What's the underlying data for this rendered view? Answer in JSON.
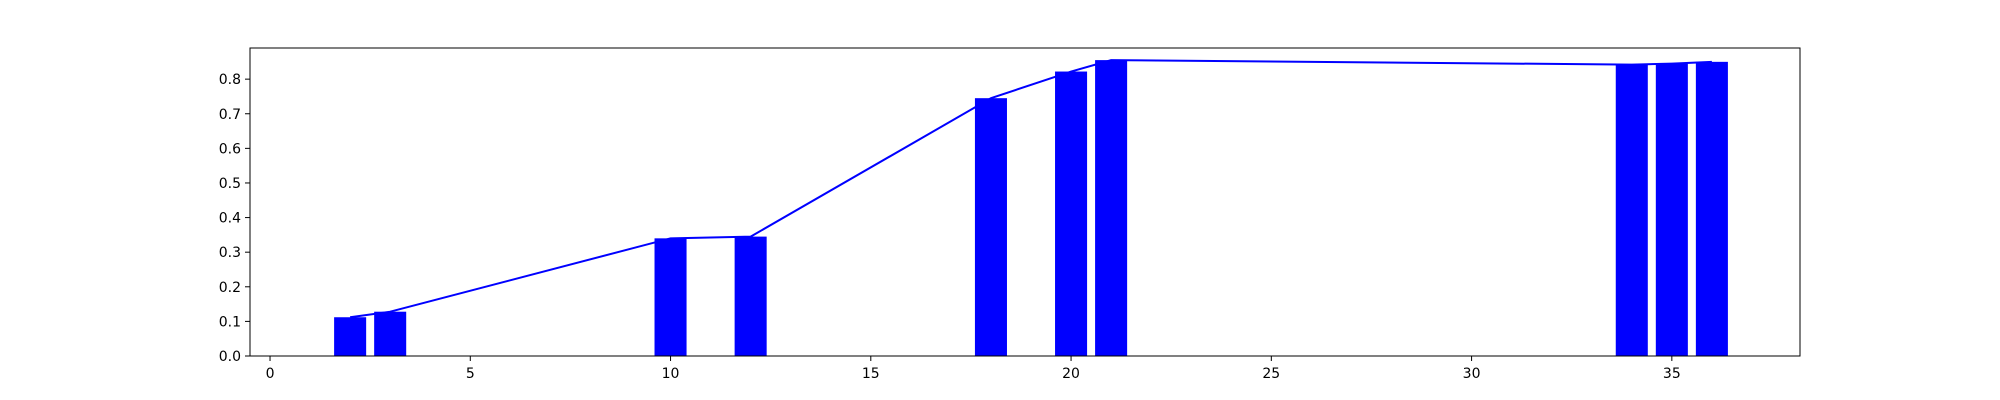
{
  "chart_data": {
    "type": "bar",
    "title": "",
    "xlabel": "",
    "ylabel": "",
    "xlim": [
      -0.5,
      38.2
    ],
    "ylim": [
      0,
      0.89
    ],
    "grid": false,
    "bar_width": 0.8,
    "colors": {
      "bars": "#0000ff",
      "line": "#0000ff"
    },
    "x": [
      2,
      3,
      10,
      12,
      18,
      20,
      21,
      34,
      35,
      36
    ],
    "values": [
      0.112,
      0.128,
      0.34,
      0.345,
      0.745,
      0.822,
      0.855,
      0.842,
      0.845,
      0.85
    ],
    "line": {
      "x": [
        2,
        3,
        10,
        12,
        18,
        20,
        21,
        34,
        35,
        36
      ],
      "y": [
        0.112,
        0.128,
        0.34,
        0.345,
        0.745,
        0.822,
        0.855,
        0.842,
        0.845,
        0.85
      ]
    },
    "xticks": [
      0,
      5,
      10,
      15,
      20,
      25,
      30,
      35
    ],
    "xtick_labels": [
      "0",
      "5",
      "10",
      "15",
      "20",
      "25",
      "30",
      "35"
    ],
    "yticks": [
      0.0,
      0.1,
      0.2,
      0.3,
      0.4,
      0.5,
      0.6,
      0.7,
      0.8
    ],
    "ytick_labels": [
      "0.0",
      "0.1",
      "0.2",
      "0.3",
      "0.4",
      "0.5",
      "0.6",
      "0.7",
      "0.8"
    ]
  }
}
